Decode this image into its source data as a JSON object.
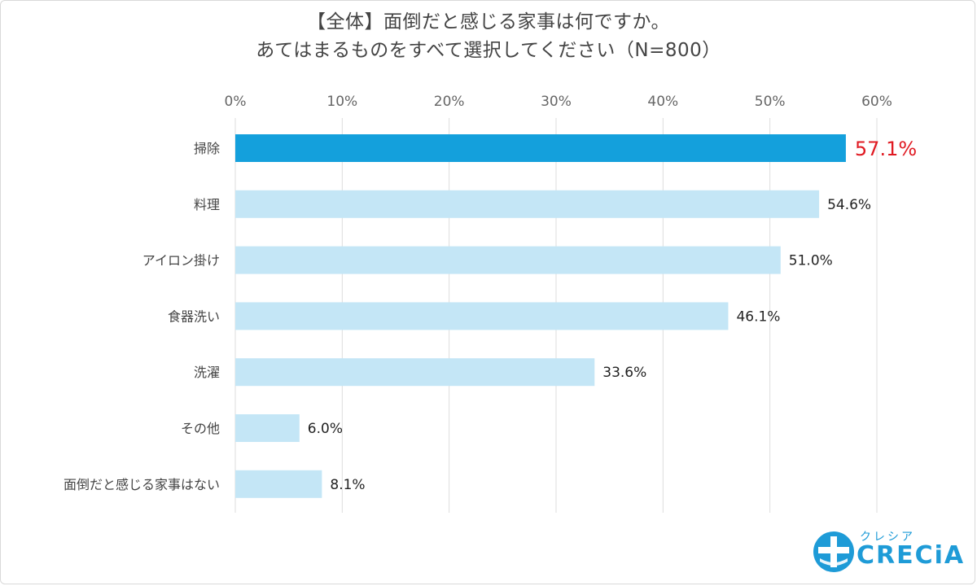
{
  "title": {
    "line1": "【全体】面倒だと感じる家事は何ですか。",
    "line2": "あてはまるものをすべて選択してください（N=800）"
  },
  "logo": {
    "kana": "クレシア",
    "wordmark": "CRECiA",
    "icon": "cross-circle-icon",
    "color": "#1e9bd7"
  },
  "colors": {
    "highlight_bar": "#14a0dc",
    "bar": "#c4e6f6",
    "highlight_label": "#e01a22",
    "grid": "#dddddd"
  },
  "chart_data": {
    "type": "bar",
    "orientation": "horizontal",
    "categories": [
      "掃除",
      "料理",
      "アイロン掛け",
      "食器洗い",
      "洗濯",
      "その他",
      "面倒だと感じる家事はない"
    ],
    "values": [
      57.1,
      54.6,
      51.0,
      46.1,
      33.6,
      6.0,
      8.1
    ],
    "value_labels": [
      "57.1%",
      "54.6%",
      "51.0%",
      "46.1%",
      "33.6%",
      "6.0%",
      "8.1%"
    ],
    "highlight_index": 0,
    "xlim": [
      0,
      60
    ],
    "xticks": [
      0,
      10,
      20,
      30,
      40,
      50,
      60
    ],
    "xtick_labels": [
      "0%",
      "10%",
      "20%",
      "30%",
      "40%",
      "50%",
      "60%"
    ],
    "axis_position": "top",
    "grid": true,
    "legend": "none"
  }
}
